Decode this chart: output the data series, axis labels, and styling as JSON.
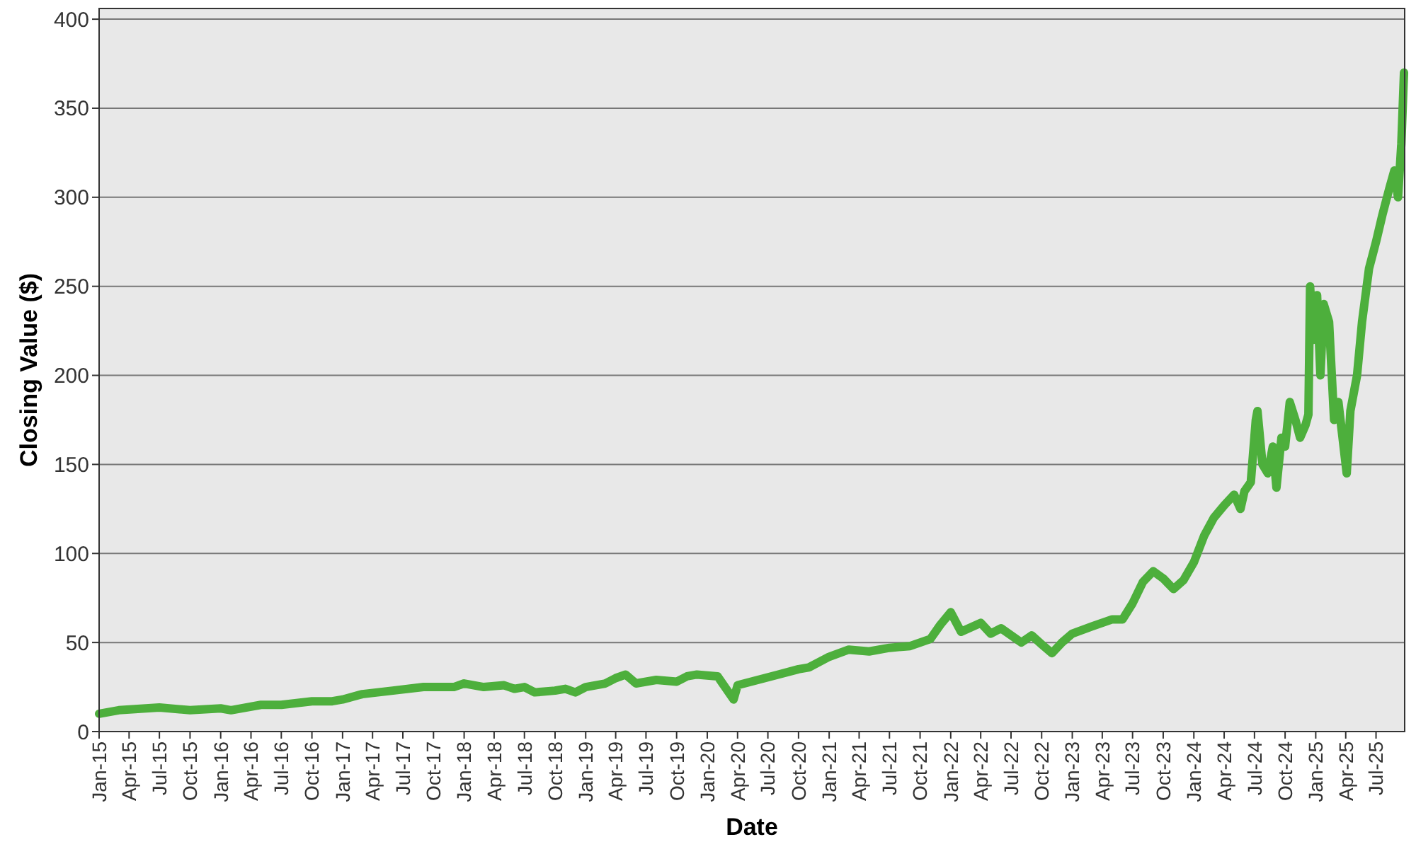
{
  "chart_data": {
    "type": "line",
    "xlabel": "Date",
    "ylabel": "Closing Value ($)",
    "x": [
      "2015-01-01",
      "2015-03-01",
      "2015-07-01",
      "2015-10-01",
      "2016-01-01",
      "2016-02-01",
      "2016-05-01",
      "2016-07-01",
      "2016-10-01",
      "2016-12-01",
      "2017-01-01",
      "2017-03-01",
      "2017-06-01",
      "2017-09-01",
      "2017-12-01",
      "2018-01-01",
      "2018-03-01",
      "2018-05-01",
      "2018-06-01",
      "2018-07-01",
      "2018-08-01",
      "2018-10-01",
      "2018-11-01",
      "2018-12-01",
      "2019-01-01",
      "2019-03-01",
      "2019-04-01",
      "2019-05-01",
      "2019-06-01",
      "2019-08-01",
      "2019-10-01",
      "2019-11-01",
      "2019-12-01",
      "2020-02-01",
      "2020-03-20",
      "2020-04-01",
      "2020-06-01",
      "2020-08-01",
      "2020-10-01",
      "2020-11-01",
      "2021-01-01",
      "2021-03-01",
      "2021-05-01",
      "2021-07-01",
      "2021-09-01",
      "2021-11-01",
      "2021-12-01",
      "2022-01-01",
      "2022-02-01",
      "2022-04-01",
      "2022-05-01",
      "2022-06-01",
      "2022-08-01",
      "2022-09-01",
      "2022-10-01",
      "2022-11-01",
      "2022-12-01",
      "2023-01-01",
      "2023-03-01",
      "2023-05-01",
      "2023-06-01",
      "2023-07-01",
      "2023-08-01",
      "2023-09-01",
      "2023-10-01",
      "2023-11-01",
      "2023-12-01",
      "2024-01-01",
      "2024-02-01",
      "2024-03-01",
      "2024-04-01",
      "2024-05-01",
      "2024-05-20",
      "2024-06-01",
      "2024-06-20",
      "2024-07-05",
      "2024-07-10",
      "2024-07-25",
      "2024-08-10",
      "2024-08-25",
      "2024-09-05",
      "2024-09-20",
      "2024-10-01",
      "2024-10-15",
      "2024-11-01",
      "2024-11-15",
      "2024-12-01",
      "2024-12-10",
      "2024-12-15",
      "2024-12-25",
      "2025-01-05",
      "2025-01-15",
      "2025-01-25",
      "2025-02-10",
      "2025-02-25",
      "2025-03-10",
      "2025-04-04",
      "2025-04-15",
      "2025-05-05",
      "2025-05-20",
      "2025-06-10",
      "2025-07-01",
      "2025-07-20",
      "2025-08-10",
      "2025-08-25",
      "2025-09-05",
      "2025-09-15",
      "2025-09-23"
    ],
    "series": [
      {
        "color": "#4daf3c",
        "values": [
          10,
          12,
          13.5,
          12,
          13,
          12,
          15,
          15,
          17,
          17,
          18,
          21,
          23,
          25,
          25,
          27,
          25,
          26,
          24,
          25,
          22,
          23,
          24,
          22,
          25,
          27,
          30,
          32,
          27,
          29,
          28,
          31,
          32,
          31,
          18,
          26,
          29,
          32,
          35,
          36,
          42,
          46,
          45,
          47,
          48,
          52,
          60,
          67,
          56,
          61,
          55,
          58,
          50,
          54,
          49,
          44,
          50,
          55,
          59,
          63,
          63,
          72,
          84,
          90,
          86,
          80,
          85,
          95,
          110,
          120,
          127,
          133,
          125,
          135,
          140,
          175,
          180,
          150,
          145,
          160,
          137,
          165,
          160,
          185,
          175,
          165,
          172,
          178,
          250,
          220,
          245,
          200,
          240,
          230,
          175,
          185,
          145,
          180,
          200,
          230,
          260,
          275,
          290,
          305,
          315,
          300,
          330,
          370
        ]
      }
    ],
    "xlim": [
      "2015-01-01",
      "2025-09-25"
    ],
    "ylim": [
      0,
      406
    ],
    "yticks": [
      0,
      50,
      100,
      150,
      200,
      250,
      300,
      350,
      400
    ],
    "xticks": [
      {
        "value": "2015-01-01",
        "label": "Jan-15"
      },
      {
        "value": "2015-04-01",
        "label": "Apr-15"
      },
      {
        "value": "2015-07-01",
        "label": "Jul-15"
      },
      {
        "value": "2015-10-01",
        "label": "Oct-15"
      },
      {
        "value": "2016-01-01",
        "label": "Jan-16"
      },
      {
        "value": "2016-04-01",
        "label": "Apr-16"
      },
      {
        "value": "2016-07-01",
        "label": "Jul-16"
      },
      {
        "value": "2016-10-01",
        "label": "Oct-16"
      },
      {
        "value": "2017-01-01",
        "label": "Jan-17"
      },
      {
        "value": "2017-04-01",
        "label": "Apr-17"
      },
      {
        "value": "2017-07-01",
        "label": "Jul-17"
      },
      {
        "value": "2017-10-01",
        "label": "Oct-17"
      },
      {
        "value": "2018-01-01",
        "label": "Jan-18"
      },
      {
        "value": "2018-04-01",
        "label": "Apr-18"
      },
      {
        "value": "2018-07-01",
        "label": "Jul-18"
      },
      {
        "value": "2018-10-01",
        "label": "Oct-18"
      },
      {
        "value": "2019-01-01",
        "label": "Jan-19"
      },
      {
        "value": "2019-04-01",
        "label": "Apr-19"
      },
      {
        "value": "2019-07-01",
        "label": "Jul-19"
      },
      {
        "value": "2019-10-01",
        "label": "Oct-19"
      },
      {
        "value": "2020-01-01",
        "label": "Jan-20"
      },
      {
        "value": "2020-04-01",
        "label": "Apr-20"
      },
      {
        "value": "2020-07-01",
        "label": "Jul-20"
      },
      {
        "value": "2020-10-01",
        "label": "Oct-20"
      },
      {
        "value": "2021-01-01",
        "label": "Jan-21"
      },
      {
        "value": "2021-04-01",
        "label": "Apr-21"
      },
      {
        "value": "2021-07-01",
        "label": "Jul-21"
      },
      {
        "value": "2021-10-01",
        "label": "Oct-21"
      },
      {
        "value": "2022-01-01",
        "label": "Jan-22"
      },
      {
        "value": "2022-04-01",
        "label": "Apr-22"
      },
      {
        "value": "2022-07-01",
        "label": "Jul-22"
      },
      {
        "value": "2022-10-01",
        "label": "Oct-22"
      },
      {
        "value": "2023-01-01",
        "label": "Jan-23"
      },
      {
        "value": "2023-04-01",
        "label": "Apr-23"
      },
      {
        "value": "2023-07-01",
        "label": "Jul-23"
      },
      {
        "value": "2023-10-01",
        "label": "Oct-23"
      },
      {
        "value": "2024-01-01",
        "label": "Jan-24"
      },
      {
        "value": "2024-04-01",
        "label": "Apr-24"
      },
      {
        "value": "2024-07-01",
        "label": "Jul-24"
      },
      {
        "value": "2024-10-01",
        "label": "Oct-24"
      },
      {
        "value": "2025-01-01",
        "label": "Jan-25"
      },
      {
        "value": "2025-04-01",
        "label": "Apr-25"
      },
      {
        "value": "2025-07-01",
        "label": "Jul-25"
      }
    ],
    "grid": "y",
    "marker": "none",
    "line_style": "solid"
  }
}
